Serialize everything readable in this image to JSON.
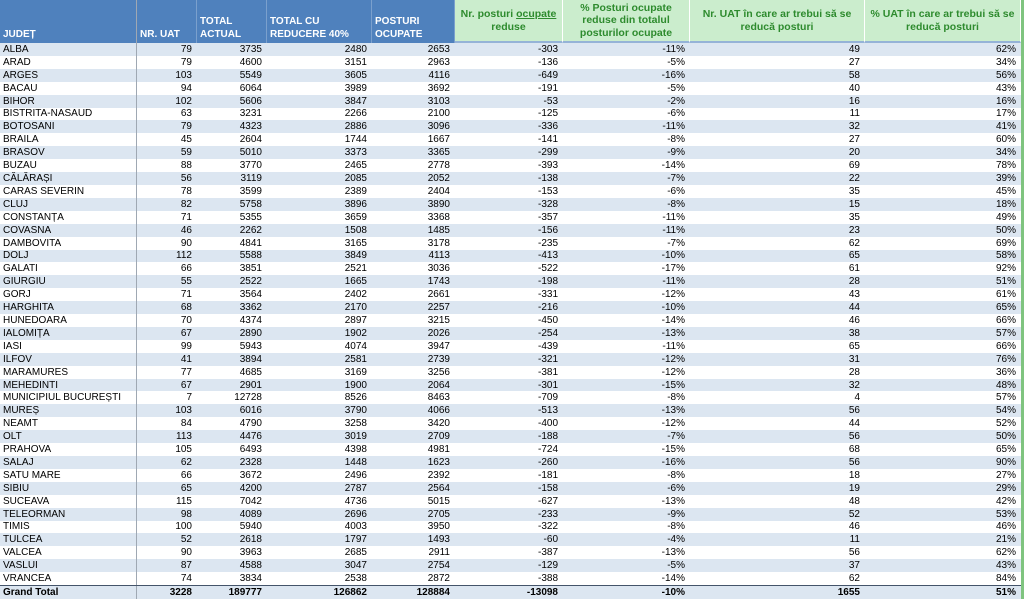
{
  "table": {
    "headers": {
      "judet": "JUDEȚ",
      "nr_uat": "NR. UAT",
      "total_actual": "TOTAL ACTUAL",
      "total_reducere": "TOTAL CU REDUCERE 40%",
      "posturi_ocupate": "POSTURI OCUPATE",
      "posturi_reduse_pre": "Nr. posturi ",
      "posturi_reduse_underlined": "ocupate",
      "posturi_reduse_post": " reduse",
      "pct_posturi_reduse": "% Posturi ocupate reduse din totalul posturilor ocupate",
      "nr_uat_reduce": "Nr. UAT în care ar trebui să se reducă posturi",
      "pct_uat_reduce": "% UAT în care ar trebui să se reducă posturi"
    },
    "rows": [
      {
        "judet": "ALBA",
        "nr_uat": "79",
        "total_actual": "3735",
        "total_reducere": "2480",
        "posturi_ocupate": "2653",
        "posturi_reduse": "-303",
        "pct_posturi_reduse": "-11%",
        "nr_uat_reduce": "49",
        "pct_uat_reduce": "62%"
      },
      {
        "judet": "ARAD",
        "nr_uat": "79",
        "total_actual": "4600",
        "total_reducere": "3151",
        "posturi_ocupate": "2963",
        "posturi_reduse": "-136",
        "pct_posturi_reduse": "-5%",
        "nr_uat_reduce": "27",
        "pct_uat_reduce": "34%"
      },
      {
        "judet": "ARGES",
        "nr_uat": "103",
        "total_actual": "5549",
        "total_reducere": "3605",
        "posturi_ocupate": "4116",
        "posturi_reduse": "-649",
        "pct_posturi_reduse": "-16%",
        "nr_uat_reduce": "58",
        "pct_uat_reduce": "56%"
      },
      {
        "judet": "BACAU",
        "nr_uat": "94",
        "total_actual": "6064",
        "total_reducere": "3989",
        "posturi_ocupate": "3692",
        "posturi_reduse": "-191",
        "pct_posturi_reduse": "-5%",
        "nr_uat_reduce": "40",
        "pct_uat_reduce": "43%"
      },
      {
        "judet": "BIHOR",
        "nr_uat": "102",
        "total_actual": "5606",
        "total_reducere": "3847",
        "posturi_ocupate": "3103",
        "posturi_reduse": "-53",
        "pct_posturi_reduse": "-2%",
        "nr_uat_reduce": "16",
        "pct_uat_reduce": "16%"
      },
      {
        "judet": "BISTRITA-NASAUD",
        "nr_uat": "63",
        "total_actual": "3231",
        "total_reducere": "2266",
        "posturi_ocupate": "2100",
        "posturi_reduse": "-125",
        "pct_posturi_reduse": "-6%",
        "nr_uat_reduce": "11",
        "pct_uat_reduce": "17%"
      },
      {
        "judet": "BOTOSANI",
        "nr_uat": "79",
        "total_actual": "4323",
        "total_reducere": "2886",
        "posturi_ocupate": "3096",
        "posturi_reduse": "-336",
        "pct_posturi_reduse": "-11%",
        "nr_uat_reduce": "32",
        "pct_uat_reduce": "41%"
      },
      {
        "judet": "BRAILA",
        "nr_uat": "45",
        "total_actual": "2604",
        "total_reducere": "1744",
        "posturi_ocupate": "1667",
        "posturi_reduse": "-141",
        "pct_posturi_reduse": "-8%",
        "nr_uat_reduce": "27",
        "pct_uat_reduce": "60%"
      },
      {
        "judet": "BRASOV",
        "nr_uat": "59",
        "total_actual": "5010",
        "total_reducere": "3373",
        "posturi_ocupate": "3365",
        "posturi_reduse": "-299",
        "pct_posturi_reduse": "-9%",
        "nr_uat_reduce": "20",
        "pct_uat_reduce": "34%"
      },
      {
        "judet": "BUZAU",
        "nr_uat": "88",
        "total_actual": "3770",
        "total_reducere": "2465",
        "posturi_ocupate": "2778",
        "posturi_reduse": "-393",
        "pct_posturi_reduse": "-14%",
        "nr_uat_reduce": "69",
        "pct_uat_reduce": "78%"
      },
      {
        "judet": "CĂLĂRAȘI",
        "nr_uat": "56",
        "total_actual": "3119",
        "total_reducere": "2085",
        "posturi_ocupate": "2052",
        "posturi_reduse": "-138",
        "pct_posturi_reduse": "-7%",
        "nr_uat_reduce": "22",
        "pct_uat_reduce": "39%"
      },
      {
        "judet": "CARAS SEVERIN",
        "nr_uat": "78",
        "total_actual": "3599",
        "total_reducere": "2389",
        "posturi_ocupate": "2404",
        "posturi_reduse": "-153",
        "pct_posturi_reduse": "-6%",
        "nr_uat_reduce": "35",
        "pct_uat_reduce": "45%"
      },
      {
        "judet": "CLUJ",
        "nr_uat": "82",
        "total_actual": "5758",
        "total_reducere": "3896",
        "posturi_ocupate": "3890",
        "posturi_reduse": "-328",
        "pct_posturi_reduse": "-8%",
        "nr_uat_reduce": "15",
        "pct_uat_reduce": "18%"
      },
      {
        "judet": "CONSTANȚA",
        "nr_uat": "71",
        "total_actual": "5355",
        "total_reducere": "3659",
        "posturi_ocupate": "3368",
        "posturi_reduse": "-357",
        "pct_posturi_reduse": "-11%",
        "nr_uat_reduce": "35",
        "pct_uat_reduce": "49%"
      },
      {
        "judet": "COVASNA",
        "nr_uat": "46",
        "total_actual": "2262",
        "total_reducere": "1508",
        "posturi_ocupate": "1485",
        "posturi_reduse": "-156",
        "pct_posturi_reduse": "-11%",
        "nr_uat_reduce": "23",
        "pct_uat_reduce": "50%"
      },
      {
        "judet": "DAMBOVITA",
        "nr_uat": "90",
        "total_actual": "4841",
        "total_reducere": "3165",
        "posturi_ocupate": "3178",
        "posturi_reduse": "-235",
        "pct_posturi_reduse": "-7%",
        "nr_uat_reduce": "62",
        "pct_uat_reduce": "69%"
      },
      {
        "judet": "DOLJ",
        "nr_uat": "112",
        "total_actual": "5588",
        "total_reducere": "3849",
        "posturi_ocupate": "4113",
        "posturi_reduse": "-413",
        "pct_posturi_reduse": "-10%",
        "nr_uat_reduce": "65",
        "pct_uat_reduce": "58%"
      },
      {
        "judet": "GALATI",
        "nr_uat": "66",
        "total_actual": "3851",
        "total_reducere": "2521",
        "posturi_ocupate": "3036",
        "posturi_reduse": "-522",
        "pct_posturi_reduse": "-17%",
        "nr_uat_reduce": "61",
        "pct_uat_reduce": "92%"
      },
      {
        "judet": "GIURGIU",
        "nr_uat": "55",
        "total_actual": "2522",
        "total_reducere": "1665",
        "posturi_ocupate": "1743",
        "posturi_reduse": "-198",
        "pct_posturi_reduse": "-11%",
        "nr_uat_reduce": "28",
        "pct_uat_reduce": "51%"
      },
      {
        "judet": "GORJ",
        "nr_uat": "71",
        "total_actual": "3564",
        "total_reducere": "2402",
        "posturi_ocupate": "2661",
        "posturi_reduse": "-331",
        "pct_posturi_reduse": "-12%",
        "nr_uat_reduce": "43",
        "pct_uat_reduce": "61%"
      },
      {
        "judet": "HARGHITA",
        "nr_uat": "68",
        "total_actual": "3362",
        "total_reducere": "2170",
        "posturi_ocupate": "2257",
        "posturi_reduse": "-216",
        "pct_posturi_reduse": "-10%",
        "nr_uat_reduce": "44",
        "pct_uat_reduce": "65%"
      },
      {
        "judet": "HUNEDOARA",
        "nr_uat": "70",
        "total_actual": "4374",
        "total_reducere": "2897",
        "posturi_ocupate": "3215",
        "posturi_reduse": "-450",
        "pct_posturi_reduse": "-14%",
        "nr_uat_reduce": "46",
        "pct_uat_reduce": "66%"
      },
      {
        "judet": "IALOMIȚA",
        "nr_uat": "67",
        "total_actual": "2890",
        "total_reducere": "1902",
        "posturi_ocupate": "2026",
        "posturi_reduse": "-254",
        "pct_posturi_reduse": "-13%",
        "nr_uat_reduce": "38",
        "pct_uat_reduce": "57%"
      },
      {
        "judet": "IASI",
        "nr_uat": "99",
        "total_actual": "5943",
        "total_reducere": "4074",
        "posturi_ocupate": "3947",
        "posturi_reduse": "-439",
        "pct_posturi_reduse": "-11%",
        "nr_uat_reduce": "65",
        "pct_uat_reduce": "66%"
      },
      {
        "judet": "ILFOV",
        "nr_uat": "41",
        "total_actual": "3894",
        "total_reducere": "2581",
        "posturi_ocupate": "2739",
        "posturi_reduse": "-321",
        "pct_posturi_reduse": "-12%",
        "nr_uat_reduce": "31",
        "pct_uat_reduce": "76%"
      },
      {
        "judet": "MARAMURES",
        "nr_uat": "77",
        "total_actual": "4685",
        "total_reducere": "3169",
        "posturi_ocupate": "3256",
        "posturi_reduse": "-381",
        "pct_posturi_reduse": "-12%",
        "nr_uat_reduce": "28",
        "pct_uat_reduce": "36%"
      },
      {
        "judet": "MEHEDINTI",
        "nr_uat": "67",
        "total_actual": "2901",
        "total_reducere": "1900",
        "posturi_ocupate": "2064",
        "posturi_reduse": "-301",
        "pct_posturi_reduse": "-15%",
        "nr_uat_reduce": "32",
        "pct_uat_reduce": "48%"
      },
      {
        "judet": "MUNICIPIUL BUCUREȘTI",
        "nr_uat": "7",
        "total_actual": "12728",
        "total_reducere": "8526",
        "posturi_ocupate": "8463",
        "posturi_reduse": "-709",
        "pct_posturi_reduse": "-8%",
        "nr_uat_reduce": "4",
        "pct_uat_reduce": "57%"
      },
      {
        "judet": "MUREȘ",
        "nr_uat": "103",
        "total_actual": "6016",
        "total_reducere": "3790",
        "posturi_ocupate": "4066",
        "posturi_reduse": "-513",
        "pct_posturi_reduse": "-13%",
        "nr_uat_reduce": "56",
        "pct_uat_reduce": "54%"
      },
      {
        "judet": "NEAMT",
        "nr_uat": "84",
        "total_actual": "4790",
        "total_reducere": "3258",
        "posturi_ocupate": "3420",
        "posturi_reduse": "-400",
        "pct_posturi_reduse": "-12%",
        "nr_uat_reduce": "44",
        "pct_uat_reduce": "52%"
      },
      {
        "judet": "OLT",
        "nr_uat": "113",
        "total_actual": "4476",
        "total_reducere": "3019",
        "posturi_ocupate": "2709",
        "posturi_reduse": "-188",
        "pct_posturi_reduse": "-7%",
        "nr_uat_reduce": "56",
        "pct_uat_reduce": "50%"
      },
      {
        "judet": "PRAHOVA",
        "nr_uat": "105",
        "total_actual": "6493",
        "total_reducere": "4398",
        "posturi_ocupate": "4981",
        "posturi_reduse": "-724",
        "pct_posturi_reduse": "-15%",
        "nr_uat_reduce": "68",
        "pct_uat_reduce": "65%"
      },
      {
        "judet": "SALAJ",
        "nr_uat": "62",
        "total_actual": "2328",
        "total_reducere": "1448",
        "posturi_ocupate": "1623",
        "posturi_reduse": "-260",
        "pct_posturi_reduse": "-16%",
        "nr_uat_reduce": "56",
        "pct_uat_reduce": "90%"
      },
      {
        "judet": "SATU MARE",
        "nr_uat": "66",
        "total_actual": "3672",
        "total_reducere": "2496",
        "posturi_ocupate": "2392",
        "posturi_reduse": "-181",
        "pct_posturi_reduse": "-8%",
        "nr_uat_reduce": "18",
        "pct_uat_reduce": "27%"
      },
      {
        "judet": "SIBIU",
        "nr_uat": "65",
        "total_actual": "4200",
        "total_reducere": "2787",
        "posturi_ocupate": "2564",
        "posturi_reduse": "-158",
        "pct_posturi_reduse": "-6%",
        "nr_uat_reduce": "19",
        "pct_uat_reduce": "29%"
      },
      {
        "judet": "SUCEAVA",
        "nr_uat": "115",
        "total_actual": "7042",
        "total_reducere": "4736",
        "posturi_ocupate": "5015",
        "posturi_reduse": "-627",
        "pct_posturi_reduse": "-13%",
        "nr_uat_reduce": "48",
        "pct_uat_reduce": "42%"
      },
      {
        "judet": "TELEORMAN",
        "nr_uat": "98",
        "total_actual": "4089",
        "total_reducere": "2696",
        "posturi_ocupate": "2705",
        "posturi_reduse": "-233",
        "pct_posturi_reduse": "-9%",
        "nr_uat_reduce": "52",
        "pct_uat_reduce": "53%"
      },
      {
        "judet": "TIMIS",
        "nr_uat": "100",
        "total_actual": "5940",
        "total_reducere": "4003",
        "posturi_ocupate": "3950",
        "posturi_reduse": "-322",
        "pct_posturi_reduse": "-8%",
        "nr_uat_reduce": "46",
        "pct_uat_reduce": "46%"
      },
      {
        "judet": "TULCEA",
        "nr_uat": "52",
        "total_actual": "2618",
        "total_reducere": "1797",
        "posturi_ocupate": "1493",
        "posturi_reduse": "-60",
        "pct_posturi_reduse": "-4%",
        "nr_uat_reduce": "11",
        "pct_uat_reduce": "21%"
      },
      {
        "judet": "VALCEA",
        "nr_uat": "90",
        "total_actual": "3963",
        "total_reducere": "2685",
        "posturi_ocupate": "2911",
        "posturi_reduse": "-387",
        "pct_posturi_reduse": "-13%",
        "nr_uat_reduce": "56",
        "pct_uat_reduce": "62%"
      },
      {
        "judet": "VASLUI",
        "nr_uat": "87",
        "total_actual": "4588",
        "total_reducere": "3047",
        "posturi_ocupate": "2754",
        "posturi_reduse": "-129",
        "pct_posturi_reduse": "-5%",
        "nr_uat_reduce": "37",
        "pct_uat_reduce": "43%"
      },
      {
        "judet": "VRANCEA",
        "nr_uat": "74",
        "total_actual": "3834",
        "total_reducere": "2538",
        "posturi_ocupate": "2872",
        "posturi_reduse": "-388",
        "pct_posturi_reduse": "-14%",
        "nr_uat_reduce": "62",
        "pct_uat_reduce": "84%"
      }
    ],
    "grand_total": {
      "label": "Grand Total",
      "nr_uat": "3228",
      "total_actual": "189777",
      "total_reducere": "126862",
      "posturi_ocupate": "128884",
      "posturi_reduse": "-13098",
      "pct_posturi_reduse": "-10%",
      "nr_uat_reduce": "1655",
      "pct_uat_reduce": "51%"
    }
  },
  "colors": {
    "header_blue": "#4F81BD",
    "band_blue": "#DCE6F1",
    "green_header_fill": "#CBEDCD",
    "green_header_text": "#2E8B2E",
    "right_edge_strip": "#7FC47F"
  }
}
